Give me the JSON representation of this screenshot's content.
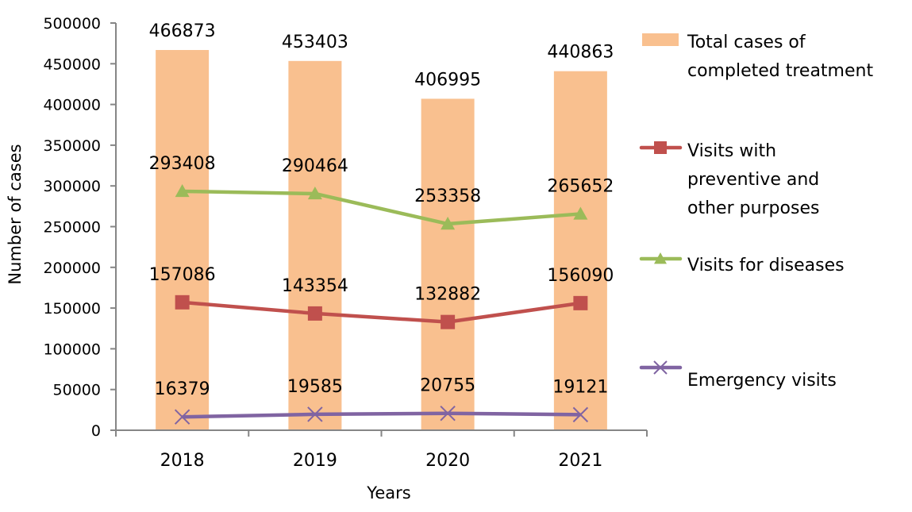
{
  "chart_data": {
    "type": "bar",
    "title": "",
    "xlabel": "Years",
    "ylabel": "Number of cases",
    "categories": [
      "2018",
      "2019",
      "2020",
      "2021"
    ],
    "ylim": [
      0,
      500000
    ],
    "yticks": [
      0,
      50000,
      100000,
      150000,
      200000,
      250000,
      300000,
      350000,
      400000,
      450000,
      500000
    ],
    "ytick_labels": [
      "0",
      "50000",
      "100000",
      "150000",
      "200000",
      "250000",
      "300000",
      "350000",
      "400000",
      "450000",
      "500000"
    ],
    "grid": false,
    "legend_position": "right",
    "series": [
      {
        "name": "Total cases of completed treatment",
        "legend_lines": [
          "Total cases of",
          "completed treatment"
        ],
        "type": "bar",
        "color": "#F9C08F",
        "values": [
          466873,
          453403,
          406995,
          440863
        ],
        "labels": [
          "466873",
          "453403",
          "406995",
          "440863"
        ]
      },
      {
        "name": "Visits with preventive and other purposes",
        "legend_lines": [
          "Visits with",
          "preventive and",
          "other purposes"
        ],
        "type": "line",
        "marker": "square",
        "color": "#C0504D",
        "values": [
          157086,
          143354,
          132882,
          156090
        ],
        "labels": [
          "157086",
          "143354",
          "132882",
          "156090"
        ]
      },
      {
        "name": "Visits for diseases",
        "legend_lines": [
          "Visits for diseases"
        ],
        "type": "line",
        "marker": "triangle",
        "color": "#9BBB59",
        "values": [
          293408,
          290464,
          253358,
          265652
        ],
        "labels": [
          "293408",
          "290464",
          "253358",
          "265652"
        ]
      },
      {
        "name": "Emergency visits",
        "legend_lines": [
          "Emergency visits"
        ],
        "type": "line",
        "marker": "x",
        "color": "#8064A2",
        "values": [
          16379,
          19585,
          20755,
          19121
        ],
        "labels": [
          "16379",
          "19585",
          "20755",
          "19121"
        ]
      }
    ]
  }
}
